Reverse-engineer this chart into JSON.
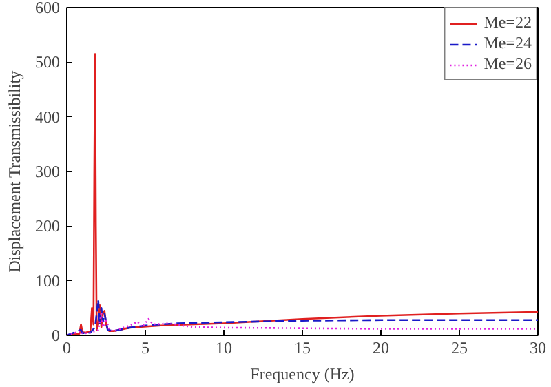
{
  "chart_data": {
    "type": "line",
    "xlabel": "Frequency (Hz)",
    "ylabel": "Displacement Transmissibility",
    "xlim": [
      0,
      30
    ],
    "ylim": [
      0,
      600
    ],
    "xticks": [
      0,
      5,
      10,
      15,
      20,
      25,
      30
    ],
    "yticks": [
      0,
      100,
      200,
      300,
      400,
      500,
      600
    ],
    "grid": false,
    "legend": "top right",
    "series": [
      {
        "name": "Me=22",
        "color": "#e02020",
        "line_style": "solid",
        "x": [
          0,
          0.8,
          0.9,
          1.0,
          1.2,
          1.5,
          1.6,
          1.7,
          1.75,
          1.8,
          1.85,
          1.9,
          2.0,
          2.1,
          2.2,
          2.3,
          2.4,
          2.5,
          2.6,
          2.7,
          3.0,
          4.0,
          6.0,
          10,
          15,
          20,
          25,
          30
        ],
        "values": [
          0,
          3,
          20,
          6,
          5,
          8,
          50,
          20,
          300,
          515,
          200,
          10,
          20,
          55,
          15,
          40,
          45,
          20,
          12,
          8,
          8,
          14,
          18,
          22,
          30,
          36,
          40,
          43
        ]
      },
      {
        "name": "Me=24",
        "color": "#1a1ac8",
        "line_style": "dashed",
        "x": [
          0,
          0.9,
          1.0,
          1.5,
          1.8,
          2.0,
          2.1,
          2.2,
          2.3,
          2.4,
          2.6,
          3.0,
          4.0,
          5.0,
          7.0,
          10,
          15,
          20,
          25,
          30
        ],
        "values": [
          0,
          10,
          4,
          5,
          15,
          65,
          20,
          50,
          25,
          40,
          10,
          8,
          14,
          18,
          22,
          24,
          27,
          28,
          28,
          28
        ]
      },
      {
        "name": "Me=26",
        "color": "#e020e0",
        "line_style": "dotted",
        "x": [
          0,
          0.9,
          1.0,
          1.5,
          2.0,
          2.2,
          2.3,
          2.5,
          2.7,
          3.0,
          4.0,
          4.5,
          4.8,
          5.2,
          5.5,
          6.5,
          8.0,
          10,
          15,
          20,
          25,
          30
        ],
        "values": [
          0,
          8,
          3,
          5,
          10,
          40,
          15,
          30,
          10,
          8,
          18,
          25,
          15,
          30,
          20,
          22,
          15,
          14,
          13,
          12,
          12,
          12
        ]
      }
    ]
  }
}
